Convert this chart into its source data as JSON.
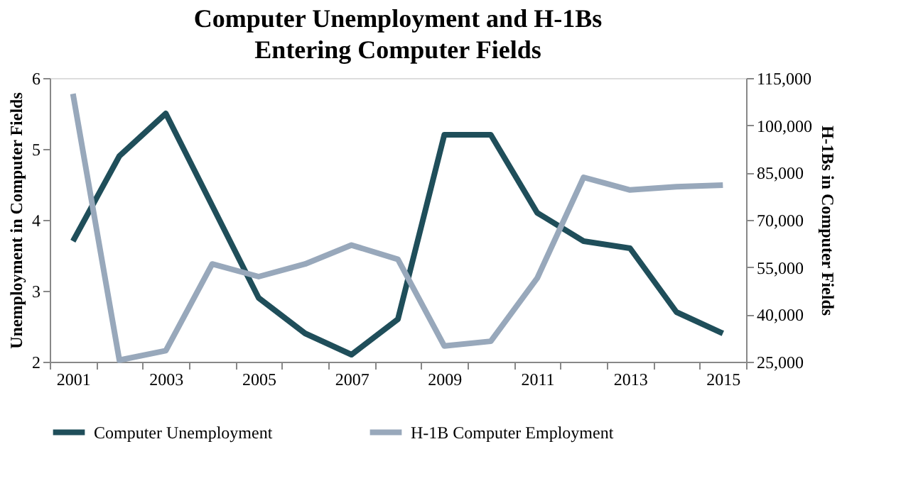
{
  "chart_data": {
    "type": "line",
    "title": "Computer Unemployment and H-1Bs Entering Computer Fields",
    "ylabel": "Unemployment in Computer Fields",
    "y2label": "H-1Bs in Computer Fields",
    "categories": [
      "2001",
      null,
      "2003",
      null,
      "2005",
      null,
      "2007",
      null,
      "2009",
      null,
      "2011",
      null,
      "2013",
      null,
      "2015"
    ],
    "series": [
      {
        "name": "Computer Unemployment",
        "color": "#1f4e5a",
        "values": [
          3.7,
          4.9,
          5.5,
          4.2,
          2.9,
          2.4,
          2.1,
          2.6,
          5.2,
          5.2,
          4.1,
          3.7,
          3.6,
          2.7,
          2.4
        ]
      },
      {
        "name": "H-1B Computer Employment",
        "color": "#98a8bb",
        "axis": "y2",
        "values": [
          110000,
          25500,
          28500,
          56000,
          52000,
          56000,
          62000,
          57500,
          30000,
          31500,
          51500,
          83500,
          79500,
          80500,
          81000
        ]
      }
    ],
    "ylim": [
      2,
      6
    ],
    "yticks": [
      2,
      3,
      4,
      5,
      6
    ],
    "y2lim": [
      25000,
      115000
    ],
    "y2ticks": [
      {
        "value": 25000,
        "label": "25,000"
      },
      {
        "value": 40000,
        "label": "40,000"
      },
      {
        "value": 55000,
        "label": "55,000"
      },
      {
        "value": 70000,
        "label": "70,000"
      },
      {
        "value": 85000,
        "label": "85,000"
      },
      {
        "value": 100000,
        "label": "100,000"
      },
      {
        "value": 115000,
        "label": "115,000"
      }
    ],
    "grid": false,
    "legend": "bottom",
    "marker": "none",
    "line_style": "solid"
  }
}
